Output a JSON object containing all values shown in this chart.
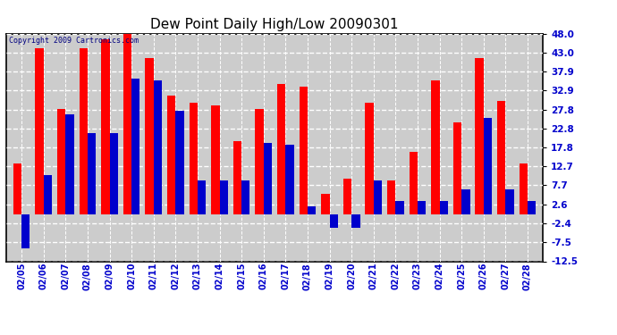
{
  "title": "Dew Point Daily High/Low 20090301",
  "copyright": "Copyright 2009 Cartronics.com",
  "dates": [
    "02/05",
    "02/06",
    "02/07",
    "02/08",
    "02/09",
    "02/10",
    "02/11",
    "02/12",
    "02/13",
    "02/14",
    "02/15",
    "02/16",
    "02/17",
    "02/18",
    "02/19",
    "02/20",
    "02/21",
    "02/22",
    "02/23",
    "02/24",
    "02/25",
    "02/26",
    "02/27",
    "02/28"
  ],
  "highs": [
    13.5,
    44.0,
    28.0,
    44.0,
    46.5,
    48.5,
    41.5,
    31.5,
    29.5,
    29.0,
    19.5,
    28.0,
    34.5,
    34.0,
    5.5,
    9.5,
    29.5,
    9.0,
    16.5,
    35.5,
    24.5,
    41.5,
    30.0,
    13.5
  ],
  "lows": [
    -9.0,
    10.5,
    26.5,
    21.5,
    21.5,
    36.0,
    35.5,
    27.5,
    9.0,
    9.0,
    9.0,
    19.0,
    18.5,
    2.0,
    -3.5,
    -3.5,
    9.0,
    3.5,
    3.5,
    3.5,
    6.5,
    25.5,
    6.5,
    3.5
  ],
  "high_color": "#ff0000",
  "low_color": "#0000cc",
  "bg_color": "#ffffff",
  "plot_bg_color": "#cccccc",
  "grid_color": "#ffffff",
  "ylim_min": -12.5,
  "ylim_max": 48.0,
  "yticks": [
    -12.5,
    -7.5,
    -2.4,
    2.6,
    7.7,
    12.7,
    17.8,
    22.8,
    27.8,
    32.9,
    37.9,
    43.0,
    48.0
  ],
  "bar_width": 0.38,
  "figwidth": 6.9,
  "figheight": 3.75,
  "dpi": 100
}
